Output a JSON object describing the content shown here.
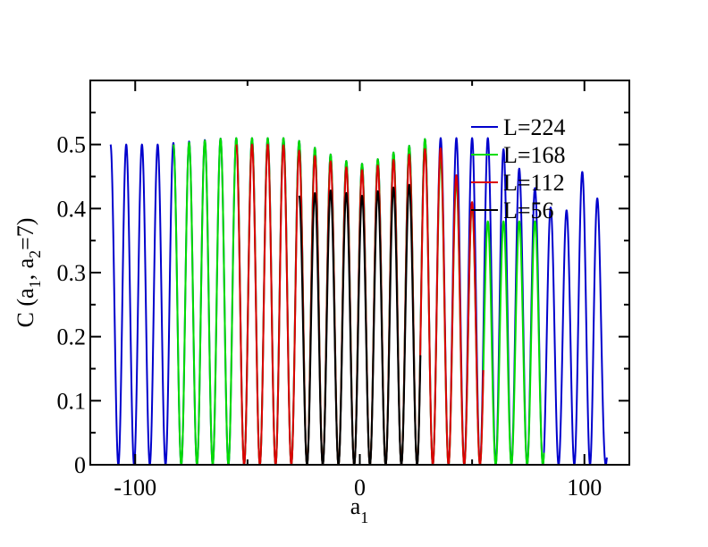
{
  "chart_data": {
    "type": "line",
    "title": "",
    "xlabel": {
      "main": "a",
      "sub": "1"
    },
    "ylabel": {
      "parts": [
        "C (a",
        "1",
        ", a",
        "2",
        "=7)"
      ]
    },
    "xlim": [
      -120,
      120
    ],
    "ylim": [
      0,
      0.6
    ],
    "x_ticks": [
      -100,
      0,
      100
    ],
    "x_tick_labels": [
      "-100",
      "0",
      "100"
    ],
    "x_minor_step": 50,
    "y_ticks": [
      0,
      0.1,
      0.2,
      0.3,
      0.4,
      0.5
    ],
    "y_tick_labels": [
      "0",
      "0.1",
      "0.2",
      "0.3",
      "0.4",
      "0.5"
    ],
    "y_minor_step": 0.05,
    "grid": false,
    "legend_position": "top-right",
    "period": 7,
    "series": [
      {
        "name": "L=224",
        "color": "#0000cc",
        "x_range": [
          -111,
          110
        ],
        "peak_envelope": [
          [
            -111,
            0.5
          ],
          [
            -90,
            0.5
          ],
          [
            -60,
            0.51
          ],
          [
            -30,
            0.51
          ],
          [
            -10,
            0.48
          ],
          [
            -3,
            0.47
          ],
          [
            3,
            0.47
          ],
          [
            10,
            0.48
          ],
          [
            30,
            0.51
          ],
          [
            60,
            0.51
          ],
          [
            90,
            0.38
          ],
          [
            104,
            0.5
          ],
          [
            110,
            0.23
          ]
        ]
      },
      {
        "name": "L=168",
        "color": "#00dd00",
        "x_range": [
          -83,
          82
        ],
        "peak_envelope": [
          [
            -83,
            0.5
          ],
          [
            -60,
            0.51
          ],
          [
            -30,
            0.51
          ],
          [
            -10,
            0.48
          ],
          [
            -3,
            0.47
          ],
          [
            3,
            0.47
          ],
          [
            10,
            0.48
          ],
          [
            30,
            0.51
          ],
          [
            55,
            0.38
          ],
          [
            82,
            0.38
          ]
        ]
      },
      {
        "name": "L=112",
        "color": "#dd0000",
        "x_range": [
          -55,
          55
        ],
        "peak_envelope": [
          [
            -55,
            0.5
          ],
          [
            -35,
            0.5
          ],
          [
            -10,
            0.47
          ],
          [
            -3,
            0.46
          ],
          [
            3,
            0.46
          ],
          [
            10,
            0.47
          ],
          [
            35,
            0.5
          ],
          [
            55,
            0.38
          ]
        ]
      },
      {
        "name": "L=56",
        "color": "#000000",
        "x_range": [
          -27,
          27
        ],
        "peak_envelope": [
          [
            -27,
            0.42
          ],
          [
            -10,
            0.43
          ],
          [
            -3,
            0.42
          ],
          [
            3,
            0.42
          ],
          [
            10,
            0.43
          ],
          [
            27,
            0.44
          ]
        ]
      }
    ]
  }
}
